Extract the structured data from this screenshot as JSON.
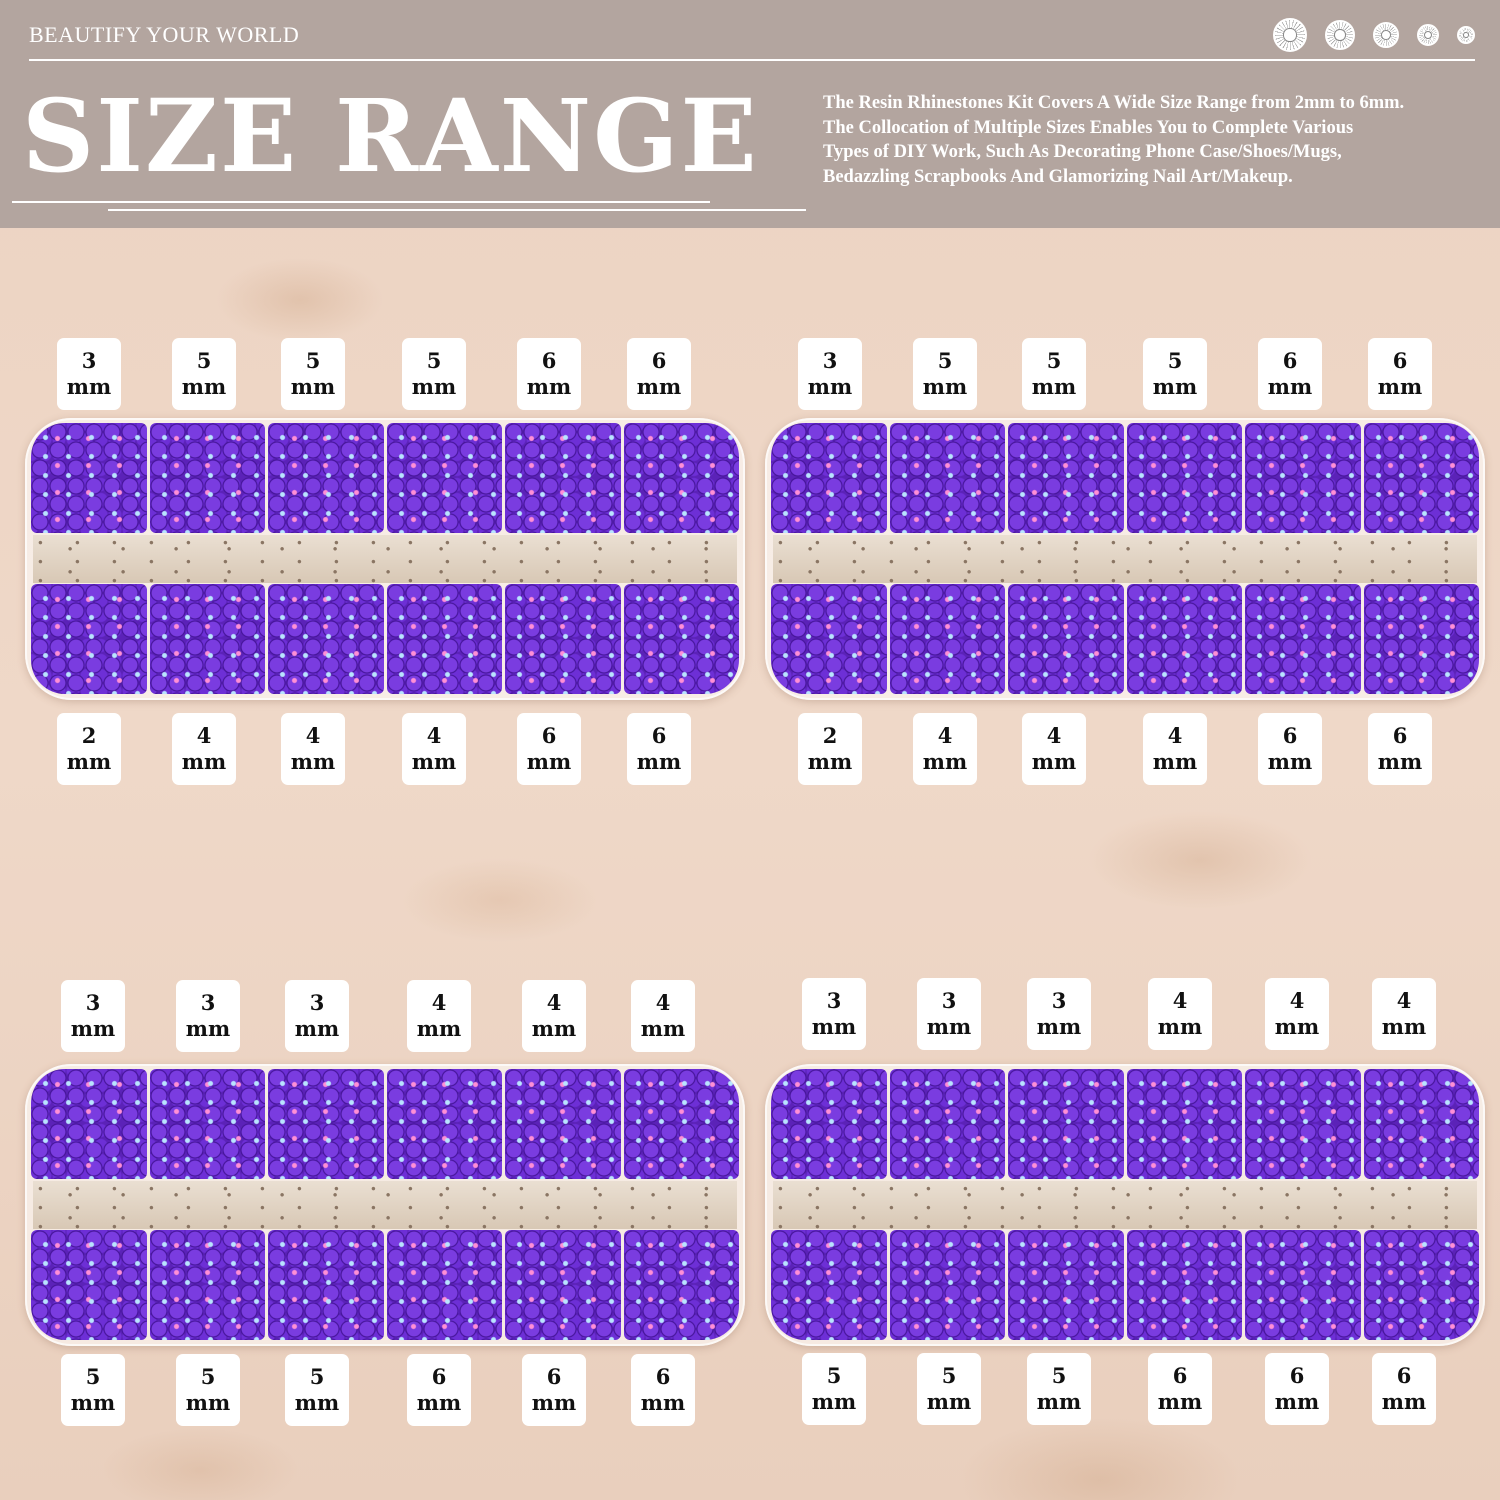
{
  "header": {
    "tagline": "BEAUTIFY YOUR WORLD",
    "title": "SIZE RANGE",
    "description": [
      "The Resin Rhinestones Kit Covers A Wide Size Range from 2mm to 6mm.",
      "The Collocation of Multiple Sizes Enables You to Complete Various",
      "Types of DIY Work, Such As Decorating Phone Case/Shoes/Mugs,",
      "Bedazzling Scrapbooks And Glamorizing Nail Art/Makeup."
    ],
    "gem_icons": [
      "rhinestone-icon",
      "rhinestone-icon",
      "rhinestone-icon",
      "rhinestone-icon",
      "rhinestone-icon"
    ]
  },
  "colors": {
    "rhinestone": "#5b22b8",
    "header_band": "#b3a59f",
    "background": "#ecd3c2"
  },
  "unit": "mm",
  "trays": [
    {
      "top": [
        "3",
        "5",
        "5",
        "5",
        "6",
        "6"
      ],
      "bottom": [
        "2",
        "4",
        "4",
        "4",
        "6",
        "6"
      ]
    },
    {
      "top": [
        "3",
        "5",
        "5",
        "5",
        "6",
        "6"
      ],
      "bottom": [
        "2",
        "4",
        "4",
        "4",
        "6",
        "6"
      ]
    },
    {
      "top": [
        "3",
        "3",
        "3",
        "4",
        "4",
        "4"
      ],
      "bottom": [
        "5",
        "5",
        "5",
        "6",
        "6",
        "6"
      ]
    },
    {
      "top": [
        "3",
        "3",
        "3",
        "4",
        "4",
        "4"
      ],
      "bottom": [
        "5",
        "5",
        "5",
        "6",
        "6",
        "6"
      ]
    }
  ]
}
